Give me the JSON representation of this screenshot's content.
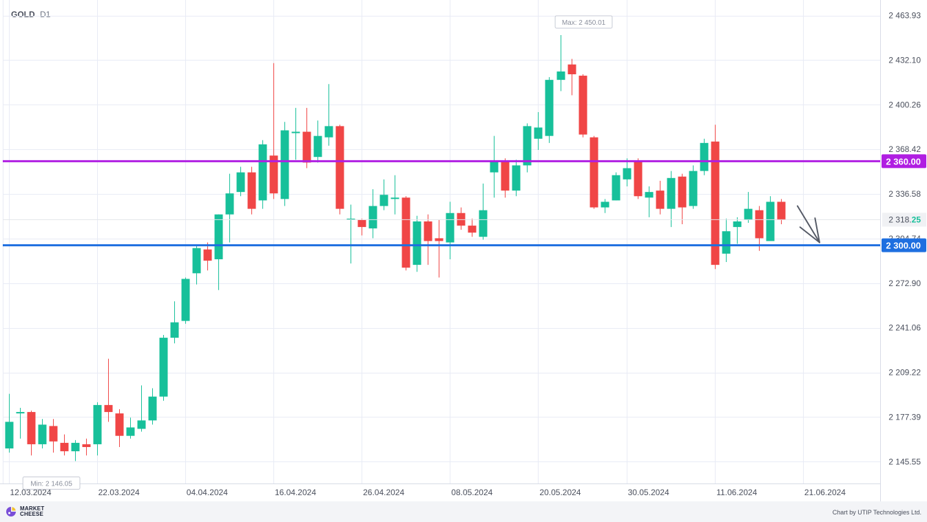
{
  "header": {
    "symbol": "GOLD",
    "timeframe": "D1"
  },
  "footer": {
    "logo_line1": "MARKET",
    "logo_line2": "CHEESE",
    "credit": "Chart by UTIP Technologies Ltd."
  },
  "chart_data": {
    "type": "candlestick",
    "ylim": [
      2130,
      2475
    ],
    "y_ticks": [
      "2 463.93",
      "2 432.10",
      "2 400.26",
      "2 368.42",
      "2 336.58",
      "2 304.74",
      "2 272.90",
      "2 241.06",
      "2 209.22",
      "2 177.39",
      "2 145.55"
    ],
    "y_tick_values": [
      2463.93,
      2432.1,
      2400.26,
      2368.42,
      2336.58,
      2304.74,
      2272.9,
      2241.06,
      2209.22,
      2177.39,
      2145.55
    ],
    "x_labels": [
      "12.03.2024",
      "22.03.2024",
      "04.04.2024",
      "16.04.2024",
      "26.04.2024",
      "08.05.2024",
      "20.05.2024",
      "30.05.2024",
      "11.06.2024",
      "21.06.2024"
    ],
    "x_label_index": [
      0,
      8,
      16,
      24,
      32,
      40,
      48,
      56,
      64,
      72
    ],
    "candles": [
      [
        2155,
        2174,
        2152,
        2194
      ],
      [
        2180,
        2181,
        2162,
        2184
      ],
      [
        2181,
        2158,
        2150,
        2182
      ],
      [
        2158,
        2172,
        2155,
        2176
      ],
      [
        2171,
        2160,
        2152,
        2176
      ],
      [
        2159,
        2153,
        2150,
        2165
      ],
      [
        2153,
        2159,
        2146,
        2161
      ],
      [
        2158,
        2156,
        2150,
        2162
      ],
      [
        2158,
        2186,
        2150,
        2188
      ],
      [
        2186,
        2181,
        2174,
        2219
      ],
      [
        2180,
        2164,
        2156,
        2183
      ],
      [
        2164,
        2170,
        2162,
        2177
      ],
      [
        2169,
        2175,
        2167,
        2200
      ],
      [
        2175,
        2192,
        2172,
        2198
      ],
      [
        2192,
        2234,
        2189,
        2236
      ],
      [
        2234,
        2245,
        2230,
        2260
      ],
      [
        2246,
        2276,
        2244,
        2277
      ],
      [
        2280,
        2298,
        2272,
        2300
      ],
      [
        2297,
        2289,
        2282,
        2302
      ],
      [
        2290,
        2322,
        2268,
        2322
      ],
      [
        2322,
        2337,
        2302,
        2351
      ],
      [
        2338,
        2352,
        2335,
        2356
      ],
      [
        2352,
        2326,
        2322,
        2356
      ],
      [
        2332,
        2372,
        2326,
        2375
      ],
      [
        2364,
        2337,
        2333,
        2430
      ],
      [
        2333,
        2382,
        2328,
        2388
      ],
      [
        2380,
        2381,
        2361,
        2398
      ],
      [
        2381,
        2359,
        2355,
        2398
      ],
      [
        2363,
        2378,
        2359,
        2389
      ],
      [
        2377,
        2385,
        2371,
        2415
      ],
      [
        2385,
        2326,
        2322,
        2386
      ],
      [
        2318,
        2319,
        2287,
        2329
      ],
      [
        2318,
        2313,
        2307,
        2319
      ],
      [
        2312,
        2328,
        2305,
        2340
      ],
      [
        2328,
        2336,
        2325,
        2347
      ],
      [
        2333,
        2334,
        2322,
        2350
      ],
      [
        2334,
        2284,
        2282,
        2335
      ],
      [
        2286,
        2317,
        2281,
        2321
      ],
      [
        2317,
        2303,
        2286,
        2322
      ],
      [
        2305,
        2303,
        2277,
        2318
      ],
      [
        2302,
        2323,
        2290,
        2331
      ],
      [
        2323,
        2314,
        2311,
        2327
      ],
      [
        2314,
        2309,
        2306,
        2319
      ],
      [
        2306,
        2325,
        2304,
        2344
      ],
      [
        2352,
        2360,
        2334,
        2378
      ],
      [
        2360,
        2339,
        2334,
        2362
      ],
      [
        2339,
        2357,
        2335,
        2361
      ],
      [
        2357,
        2385,
        2352,
        2387
      ],
      [
        2376,
        2384,
        2368,
        2395
      ],
      [
        2378,
        2418,
        2373,
        2420
      ],
      [
        2418,
        2424,
        2410,
        2450
      ],
      [
        2429,
        2422,
        2407,
        2433
      ],
      [
        2421,
        2379,
        2377,
        2422
      ],
      [
        2377,
        2327,
        2326,
        2378
      ],
      [
        2327,
        2331,
        2323,
        2333
      ],
      [
        2332,
        2350,
        2332,
        2352
      ],
      [
        2347,
        2355,
        2342,
        2362
      ],
      [
        2360,
        2335,
        2333,
        2362
      ],
      [
        2334,
        2338,
        2320,
        2342
      ],
      [
        2339,
        2326,
        2322,
        2346
      ],
      [
        2326,
        2348,
        2313,
        2353
      ],
      [
        2349,
        2327,
        2315,
        2351
      ],
      [
        2328,
        2353,
        2326,
        2357
      ],
      [
        2353,
        2373,
        2350,
        2376
      ],
      [
        2374,
        2286,
        2283,
        2386
      ],
      [
        2294,
        2310,
        2288,
        2319
      ],
      [
        2313,
        2317,
        2301,
        2320
      ],
      [
        2318,
        2326,
        2316,
        2338
      ],
      [
        2325,
        2305,
        2296,
        2328
      ],
      [
        2303,
        2331,
        2303,
        2335
      ],
      [
        2331,
        2318,
        2315,
        2333
      ]
    ],
    "max_label": "Max: 2 450.01",
    "min_label": "Min: 2 146.05",
    "last_price_main": "2 318.",
    "last_price_frac": "25",
    "last_price_value": 2318.25,
    "levels": [
      {
        "label": "2 360.00",
        "value": 2360.0,
        "color": "#b01ee2"
      },
      {
        "label": "2 300.00",
        "value": 2300.0,
        "color": "#1e6fe0"
      }
    ],
    "forecast_arrow": {
      "from_index": 71.5,
      "from_value": 2328,
      "to_index": 73.5,
      "to_value": 2302
    },
    "colors": {
      "up": "#17c09a",
      "down": "#f04646",
      "grid": "#e8ebf5",
      "axis_text": "#4a4f5c",
      "level_text": "#ffffff"
    }
  }
}
